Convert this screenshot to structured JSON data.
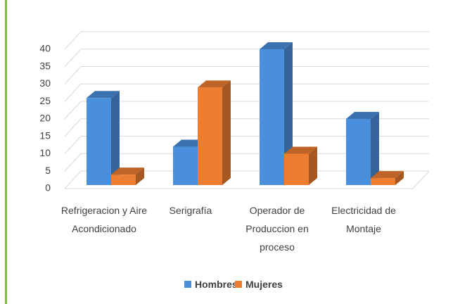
{
  "chart_data": {
    "type": "bar3d",
    "categories": [
      "Refrigeracion y Aire Acondicionado",
      "Serigrafía",
      "Operador de Produccion en proceso",
      "Electricidad de Montaje"
    ],
    "series": [
      {
        "name": "Hombres",
        "color": "#4a8fdb",
        "values": [
          25,
          11,
          39,
          19
        ]
      },
      {
        "name": "Mujeres",
        "color": "#ed7d31",
        "values": [
          3,
          28,
          9,
          2
        ]
      }
    ],
    "ylim": [
      0,
      40
    ],
    "yticks": [
      0,
      5,
      10,
      15,
      20,
      25,
      30,
      35,
      40
    ],
    "grid": true,
    "legend": "bottom"
  }
}
